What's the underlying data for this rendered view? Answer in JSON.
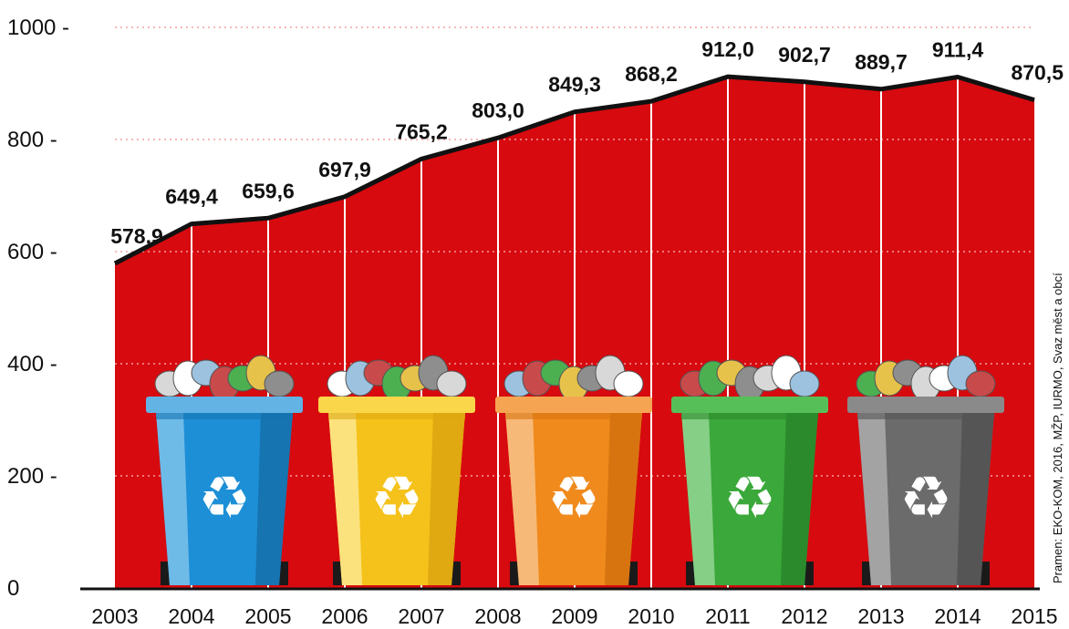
{
  "chart_data": {
    "type": "area",
    "x": [
      "2003",
      "2004",
      "2005",
      "2006",
      "2007",
      "2008",
      "2009",
      "2010",
      "2011",
      "2012",
      "2013",
      "2014",
      "2015"
    ],
    "values": [
      578.9,
      649.4,
      659.6,
      697.9,
      765.2,
      803.0,
      849.3,
      868.2,
      912.0,
      902.7,
      889.7,
      911.4,
      870.5
    ],
    "value_labels": [
      "578,9",
      "649,4",
      "659,6",
      "697,9",
      "765,2",
      "803,0",
      "849,3",
      "868,2",
      "912,0",
      "902,7",
      "889,7",
      "911,4",
      "870,5"
    ],
    "yticks": [
      {
        "value": 0,
        "label": "0"
      },
      {
        "value": 200,
        "label": "200 -"
      },
      {
        "value": 400,
        "label": "400 -"
      },
      {
        "value": 600,
        "label": "600 -"
      },
      {
        "value": 800,
        "label": "800 -"
      },
      {
        "value": 1000,
        "label": "1000 -"
      }
    ],
    "ylim": [
      0,
      1000
    ],
    "grid": true,
    "area_color": "#d70a0f",
    "line_color": "#111111",
    "source": "Pramen: EKO-KOM, 2016, MŽP, IURMO, Svaz měst a obcí"
  },
  "bins": [
    {
      "name": "paper-bin",
      "color": "#1d8fd6",
      "shade": "#1674b0",
      "light": "#6fbbe8",
      "lid": "#63b3e4"
    },
    {
      "name": "plastic-bin",
      "color": "#f5c21b",
      "shade": "#e0a811",
      "light": "#fbe27d",
      "lid": "#f9d64a"
    },
    {
      "name": "metal-bin",
      "color": "#f08a1c",
      "shade": "#d87410",
      "light": "#f7b977",
      "lid": "#f5a552"
    },
    {
      "name": "glass-bin",
      "color": "#3aa83a",
      "shade": "#2b8a2b",
      "light": "#86cf86",
      "lid": "#57bf57"
    },
    {
      "name": "bio-bin",
      "color": "#6b6b6b",
      "shade": "#555555",
      "light": "#a3a3a3",
      "lid": "#8a8a8a"
    }
  ]
}
